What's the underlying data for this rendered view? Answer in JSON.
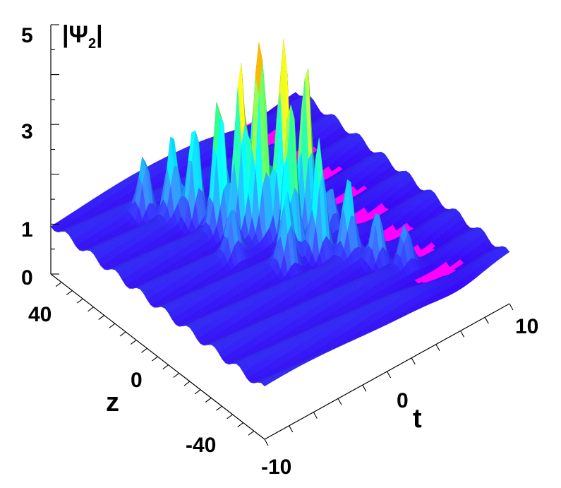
{
  "chart_data": {
    "type": "surface3d",
    "title": "",
    "zlabel": "|Ψ2|",
    "xlabel": "t",
    "ylabel": "z",
    "t_range": [
      -10,
      10
    ],
    "z_range": [
      -50,
      50
    ],
    "amp_range": [
      0,
      5
    ],
    "t_ticks": [
      "-10",
      "0",
      "10"
    ],
    "z_ticks": [
      "-40",
      "0",
      "40"
    ],
    "amp_ticks": [
      "0",
      "1",
      "3",
      "5"
    ],
    "background_level": 1,
    "peaks": [
      {
        "t": -0.6,
        "z": 6,
        "amp": 5.1
      },
      {
        "t": 0.6,
        "z": 2,
        "amp": 4.9
      },
      {
        "t": 1.6,
        "z": -3,
        "amp": 4.6
      },
      {
        "t": -1.5,
        "z": 10,
        "amp": 4.5
      },
      {
        "t": -0.2,
        "z": -6,
        "amp": 4.2
      },
      {
        "t": 0.3,
        "z": 12,
        "amp": 4.3
      },
      {
        "t": -2.2,
        "z": 16,
        "amp": 3.7
      },
      {
        "t": 1.1,
        "z": -12,
        "amp": 3.3
      },
      {
        "t": -2.8,
        "z": 24,
        "amp": 3.0
      },
      {
        "t": -3.6,
        "z": 30,
        "amp": 2.6
      },
      {
        "t": -4.8,
        "z": 36,
        "amp": 2.2
      },
      {
        "t": 2.4,
        "z": -18,
        "amp": 2.6
      },
      {
        "t": 3.4,
        "z": -26,
        "amp": 2.1
      },
      {
        "t": 4.6,
        "z": -32,
        "amp": 1.8
      },
      {
        "t": -1.2,
        "z": -10,
        "amp": 2.4
      },
      {
        "t": 2.0,
        "z": 8,
        "amp": 2.6
      },
      {
        "t": -3.2,
        "z": 4,
        "amp": 1.9
      },
      {
        "t": 3.0,
        "z": -6,
        "amp": 2.0
      }
    ],
    "colormap": [
      "#3a00ff",
      "#2f7bff",
      "#00d0ff",
      "#2cff6a",
      "#f4ff00",
      "#ff7700",
      "#ff0000"
    ],
    "trough_color": "#ff00ff"
  }
}
